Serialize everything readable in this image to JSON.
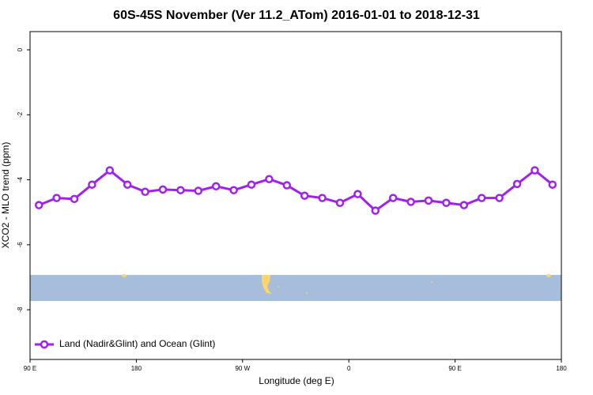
{
  "chart_data": {
    "type": "line",
    "title": "60S-45S November (Ver 11.2_ATom)   2016-01-01 to 2018-12-31",
    "x_label": "Longitude (deg E)",
    "y_label": "XCO2 - MLO trend (ppm)",
    "xlim": [
      90,
      540
    ],
    "ylim": [
      -9.53,
      0.56
    ],
    "xticks": [
      {
        "value": 90,
        "label": "90 E"
      },
      180,
      {
        "value": 270,
        "label": "90 W"
      },
      {
        "value": 360,
        "label": "0"
      },
      {
        "value": 450,
        "label": "90 E"
      },
      {
        "value": 540,
        "label": "180"
      }
    ],
    "yticks": [
      0,
      -2,
      -4,
      -6,
      -8
    ],
    "legend": "bottom-left",
    "x": [
      97.5,
      112.5,
      127.5,
      142.5,
      157.5,
      172.5,
      187.5,
      202.5,
      217.5,
      232.5,
      247.5,
      262.5,
      277.5,
      292.5,
      307.5,
      322.5,
      337.5,
      352.5,
      367.5,
      382.5,
      397.5,
      412.5,
      427.5,
      442.5,
      457.5,
      472.5,
      487.5,
      502.5,
      517.5,
      532.5
    ],
    "series": [
      {
        "name": "Land (Nadir&Glint) and Ocean (Glint)",
        "color": "#a020f0",
        "values": [
          -4.78,
          -4.56,
          -4.59,
          -4.15,
          -3.71,
          -4.15,
          -4.37,
          -4.3,
          -4.32,
          -4.34,
          -4.2,
          -4.32,
          -4.15,
          -3.98,
          -4.17,
          -4.49,
          -4.56,
          -4.71,
          -4.44,
          -4.95,
          -4.56,
          -4.68,
          -4.64,
          -4.71,
          -4.78,
          -4.56,
          -4.56,
          -4.13,
          -3.71,
          -4.15
        ]
      }
    ]
  }
}
